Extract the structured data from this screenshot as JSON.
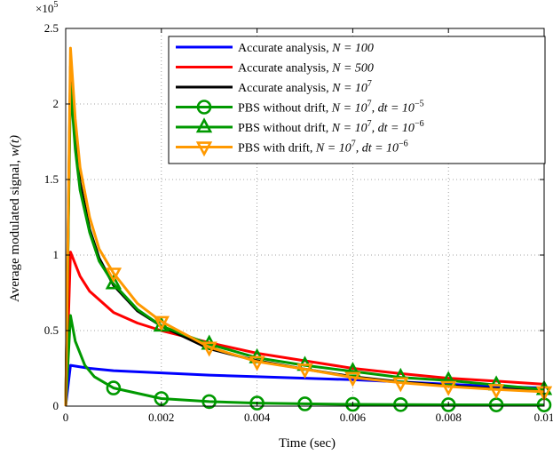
{
  "chart_data": {
    "type": "line",
    "xlabel": "Time (sec)",
    "ylabel": "Average modulated signal,",
    "ylabel_var": "w(t)",
    "y_multiplier": "×10",
    "y_multiplier_exp": "5",
    "xlim": [
      0,
      0.01
    ],
    "ylim": [
      0,
      250000
    ],
    "x_ticks": [
      0,
      0.002,
      0.004,
      0.006,
      0.008,
      0.01
    ],
    "x_tick_labels": [
      "0",
      "0.002",
      "0.004",
      "0.006",
      "0.008",
      "0.01"
    ],
    "y_ticks": [
      0,
      50000,
      100000,
      150000,
      200000,
      250000
    ],
    "y_tick_labels": [
      "0",
      "0.5",
      "1",
      "1.5",
      "2",
      "2.5"
    ],
    "grid": "dotted",
    "legend_position": "top-right",
    "series": [
      {
        "name": "Accurate analysis, N = 100",
        "legend_main": "Accurate analysis, ",
        "legend_math": "N = 100",
        "color": "#0000ff",
        "marker": "none",
        "x": [
          0,
          0.0001,
          0.0005,
          0.001,
          0.002,
          0.003,
          0.004,
          0.005,
          0.006,
          0.007,
          0.008,
          0.009,
          0.01
        ],
        "y": [
          0,
          27000,
          25000,
          23500,
          22000,
          20500,
          19500,
          18500,
          17500,
          16000,
          14500,
          13000,
          12000
        ]
      },
      {
        "name": "Accurate analysis, N = 500",
        "legend_main": "Accurate analysis, ",
        "legend_math": "N = 500",
        "color": "#ff0000",
        "marker": "none",
        "x": [
          0,
          0.0001,
          0.0003,
          0.0005,
          0.001,
          0.0015,
          0.002,
          0.003,
          0.004,
          0.005,
          0.006,
          0.007,
          0.008,
          0.009,
          0.01
        ],
        "y": [
          0,
          102000,
          86000,
          76000,
          62000,
          55000,
          50000,
          42000,
          35000,
          30000,
          25000,
          21500,
          18500,
          16500,
          14500
        ]
      },
      {
        "name": "Accurate analysis, N = 10^7",
        "legend_main": "Accurate analysis, ",
        "legend_math": "N = 10",
        "legend_sup": "7",
        "color": "#000000",
        "marker": "none",
        "x": [
          0,
          0.0001,
          0.0002,
          0.0003,
          0.0005,
          0.0007,
          0.001,
          0.0015,
          0.002,
          0.003,
          0.004,
          0.005,
          0.006,
          0.007,
          0.008,
          0.009,
          0.01
        ],
        "y": [
          0,
          225000,
          178000,
          148000,
          117000,
          98000,
          80000,
          63000,
          53000,
          38000,
          30000,
          24500,
          19500,
          16000,
          13500,
          11500,
          10000
        ]
      },
      {
        "name": "PBS without drift, N = 10^7, dt = 10^-5",
        "legend_main": "PBS without drift, ",
        "legend_math": "N = 10",
        "legend_sup": "7",
        "legend_math2": ", dt = 10",
        "legend_sup2": "−5",
        "color": "#009900",
        "marker": "circle",
        "x": [
          0,
          0.0001,
          0.0002,
          0.0004,
          0.0006,
          0.001,
          0.002,
          0.003,
          0.004,
          0.005,
          0.006,
          0.007,
          0.008,
          0.009,
          0.01
        ],
        "y": [
          0,
          60000,
          43000,
          27000,
          19500,
          12000,
          5000,
          3000,
          2000,
          1500,
          1200,
          1000,
          900,
          800,
          800
        ],
        "markers_x": [
          0.001,
          0.002,
          0.003,
          0.004,
          0.005,
          0.006,
          0.007,
          0.008,
          0.009,
          0.01
        ],
        "markers_y": [
          12000,
          5000,
          3000,
          2000,
          1500,
          1200,
          1000,
          900,
          800,
          800
        ]
      },
      {
        "name": "PBS without drift, N = 10^7, dt = 10^-6",
        "legend_main": "PBS without drift, ",
        "legend_math": "N = 10",
        "legend_sup": "7",
        "legend_math2": ", dt = 10",
        "legend_sup2": "−6",
        "color": "#009900",
        "marker": "triangle-up",
        "x": [
          0,
          0.0001,
          0.0002,
          0.0003,
          0.0005,
          0.0007,
          0.001,
          0.0015,
          0.002,
          0.003,
          0.004,
          0.005,
          0.006,
          0.007,
          0.008,
          0.009,
          0.01
        ],
        "y": [
          0,
          213000,
          170000,
          143000,
          115000,
          96000,
          81000,
          64000,
          53000,
          41000,
          32000,
          27000,
          23000,
          19000,
          17000,
          14000,
          11000
        ],
        "markers_x": [
          0.001,
          0.002,
          0.003,
          0.004,
          0.005,
          0.006,
          0.007,
          0.008,
          0.009,
          0.01
        ],
        "markers_y": [
          81000,
          53000,
          41000,
          32000,
          27000,
          23000,
          19000,
          17000,
          14000,
          11000
        ]
      },
      {
        "name": "PBS with drift, N = 10^7, dt = 10^-6",
        "legend_main": "PBS with drift, ",
        "legend_math": "N = 10",
        "legend_sup": "7",
        "legend_math2": ", dt = 10",
        "legend_sup2": "−6",
        "color": "#ff9900",
        "marker": "triangle-down",
        "x": [
          0,
          0.0001,
          0.0002,
          0.0003,
          0.0005,
          0.0007,
          0.001,
          0.0015,
          0.002,
          0.003,
          0.004,
          0.005,
          0.006,
          0.007,
          0.008,
          0.009,
          0.01
        ],
        "y": [
          0,
          237000,
          190000,
          158000,
          125000,
          104000,
          88000,
          68000,
          56000,
          39000,
          29500,
          24500,
          19000,
          15500,
          13000,
          11000,
          9500
        ],
        "markers_x": [
          0.001,
          0.002,
          0.003,
          0.004,
          0.005,
          0.006,
          0.007,
          0.008,
          0.009,
          0.01
        ],
        "markers_y": [
          88000,
          56000,
          39000,
          29500,
          24500,
          19000,
          15500,
          13000,
          11000,
          9500
        ]
      }
    ]
  }
}
